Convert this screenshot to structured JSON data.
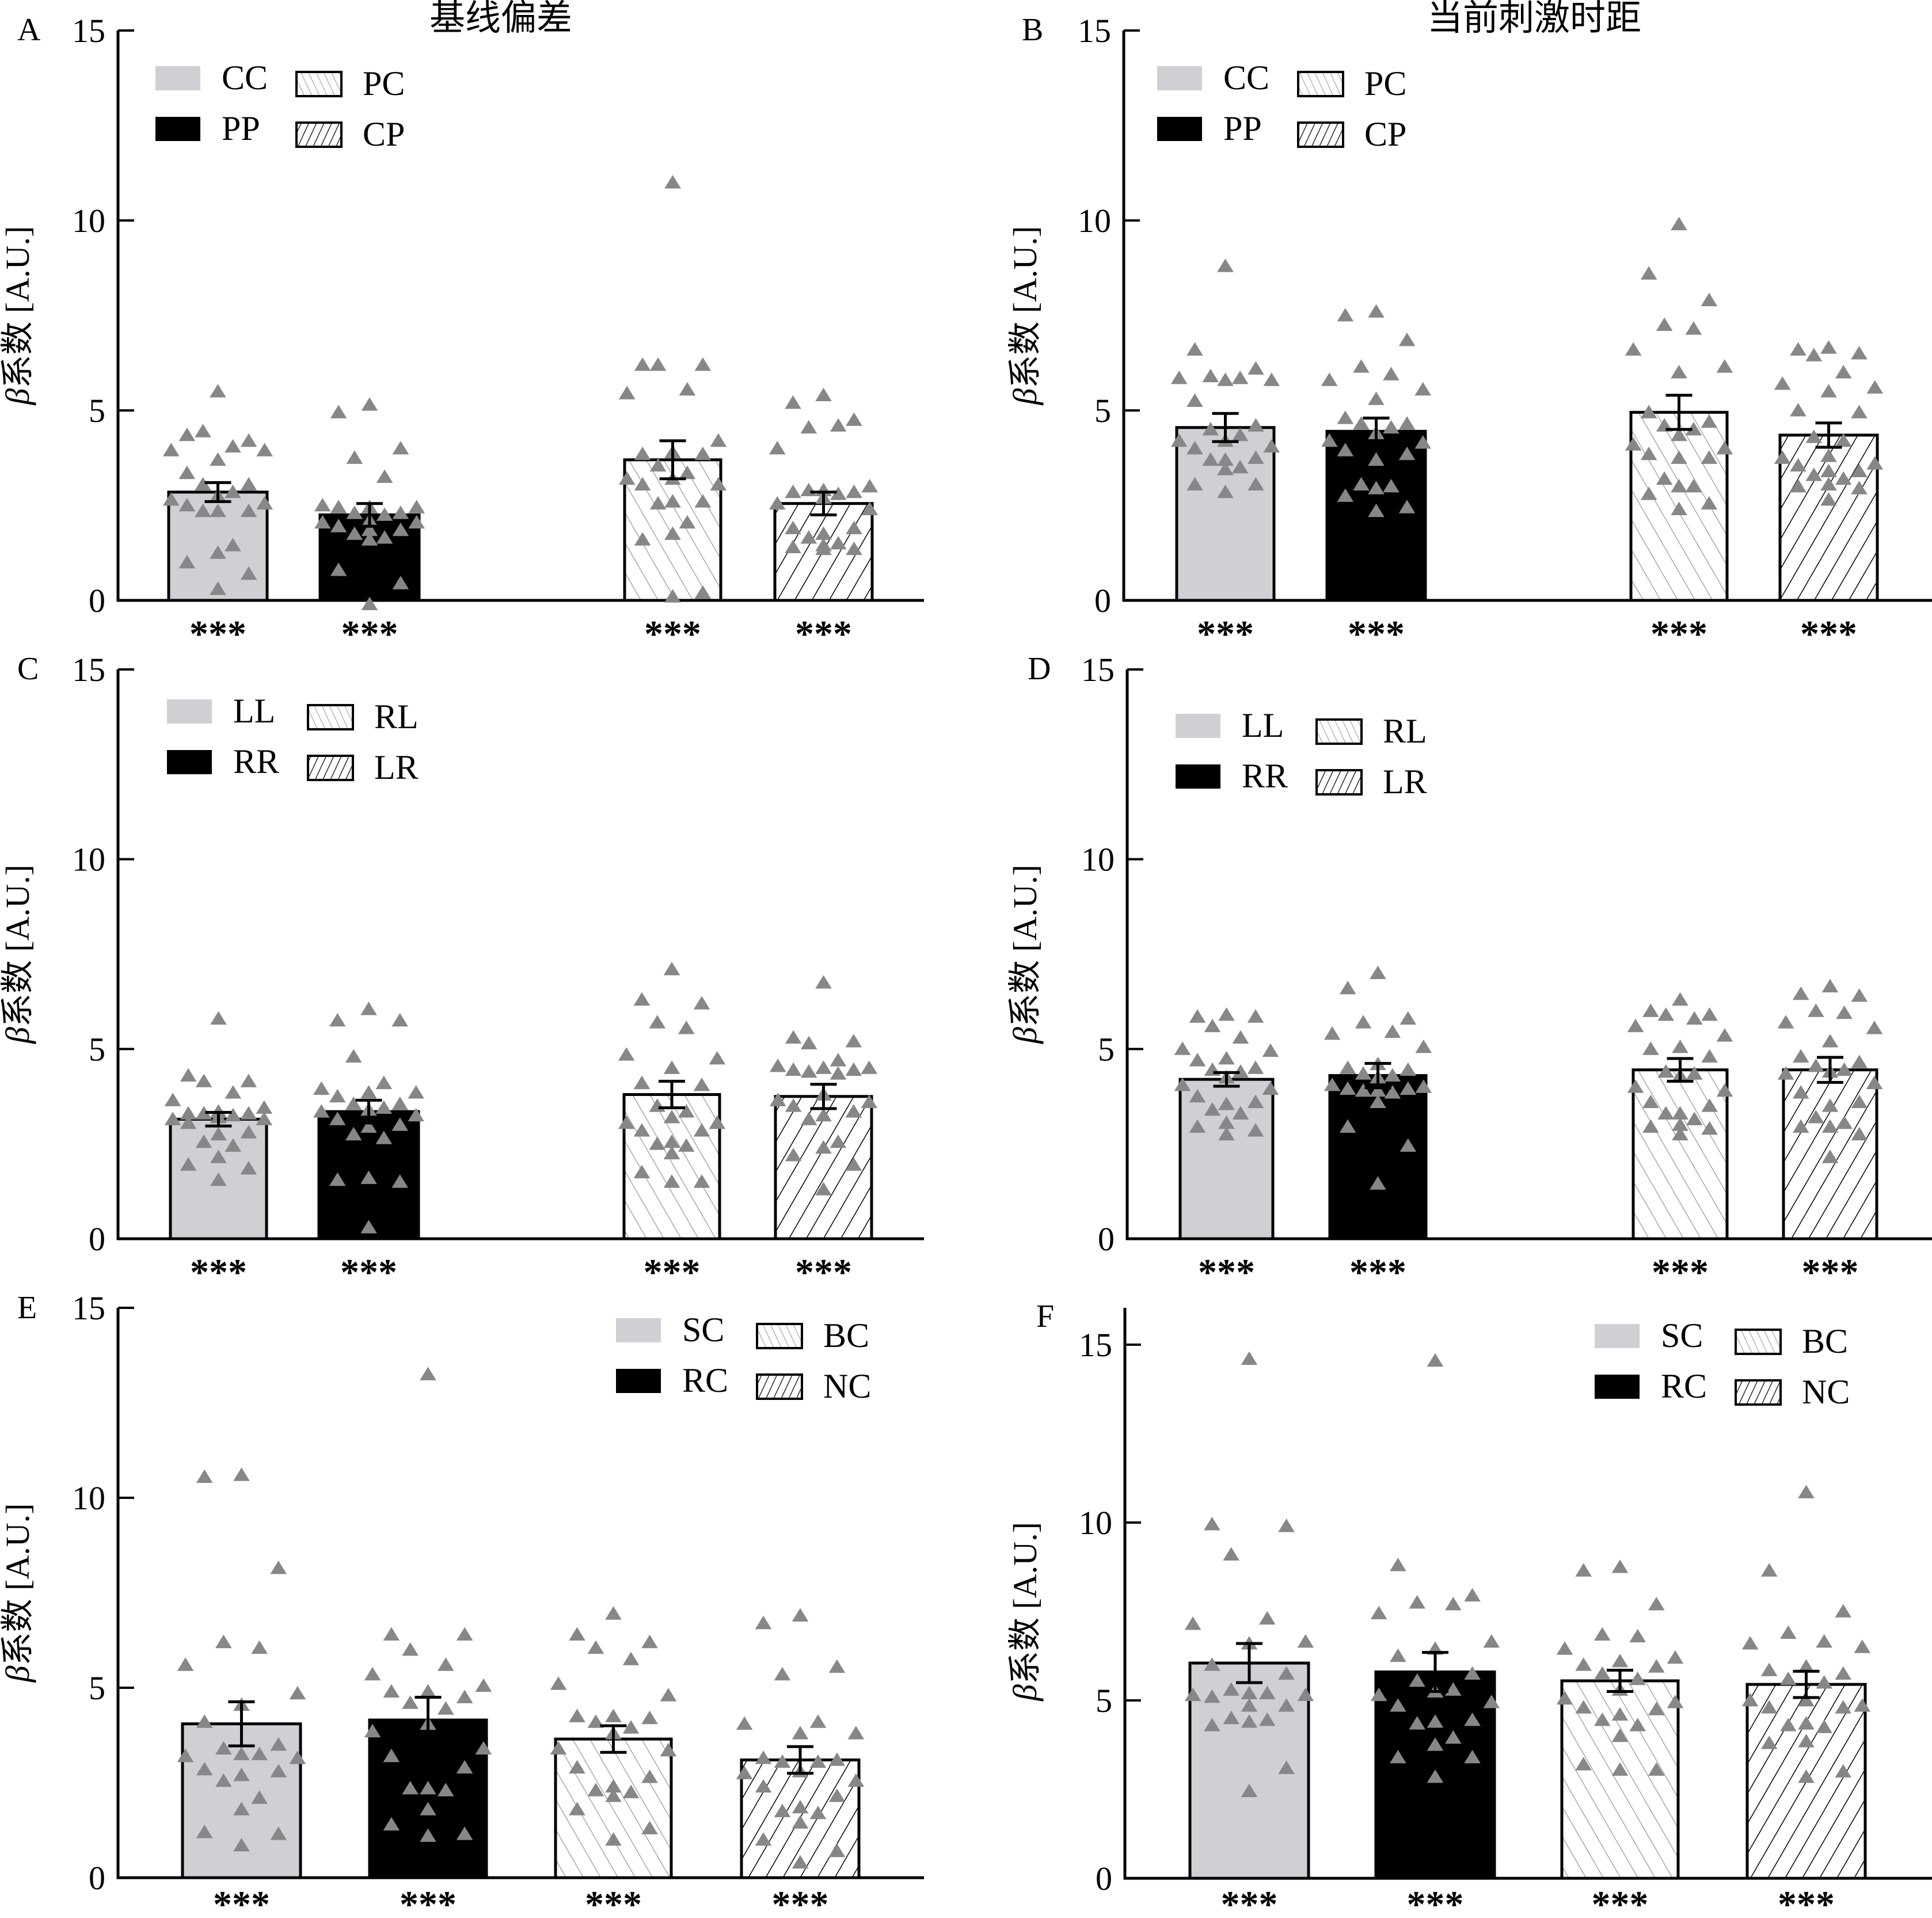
{
  "titles": {
    "left": "基线偏差",
    "right": "当前刺激时距"
  },
  "colors": {
    "solid_gray": "#cfcfd4",
    "solid_black": "#000000",
    "hatch_light": "#a8a8a8",
    "hatch_dark": "#000000",
    "points": "#87878a"
  },
  "chart_data": [
    {
      "type": "bar",
      "panel": "A",
      "title": "基线偏差",
      "ylabel_symbol": "β",
      "ylabel": "系数 [A.U.]",
      "ylim": [
        0,
        15
      ],
      "yticks": [
        "0",
        "5",
        "10",
        "15"
      ],
      "legend_placement": "top-left",
      "categories": [
        "CC",
        "PP",
        "PC",
        "CP"
      ],
      "legend": [
        [
          "CC",
          "PC"
        ],
        [
          "PP",
          "CP"
        ]
      ],
      "fills": [
        "solid_gray",
        "solid_black",
        "hatch_light",
        "hatch_dark"
      ],
      "values": [
        2.85,
        2.25,
        3.7,
        2.55
      ],
      "se": [
        0.25,
        0.3,
        0.5,
        0.3
      ],
      "significance": [
        "***",
        "***",
        "***",
        "***"
      ],
      "points": [
        [
          5.5,
          4.35,
          4.2,
          4.45,
          4.05,
          3.95,
          3.95,
          3.7,
          3.35,
          3.05,
          3.05,
          2.85,
          2.75,
          2.65,
          2.55,
          2.5,
          2.35,
          2.35,
          2.35,
          1.45,
          1.25,
          1.0,
          0.7,
          0.3
        ],
        [
          5.15,
          4.95,
          4.0,
          3.75,
          3.25,
          2.5,
          2.45,
          2.45,
          2.45,
          2.3,
          2.3,
          2.25,
          2.1,
          2.05,
          2.05,
          1.95,
          1.85,
          1.85,
          1.75,
          1.65,
          1.6,
          0.8,
          0.45,
          -0.1
        ],
        [
          11.0,
          6.2,
          6.2,
          6.2,
          5.55,
          5.45,
          4.2,
          3.9,
          3.85,
          3.85,
          3.55,
          3.35,
          3.2,
          3.2,
          3.05,
          3.05,
          2.6,
          2.6,
          2.55,
          2.05,
          1.75,
          1.6,
          0.2,
          0.1
        ],
        [
          5.4,
          5.2,
          4.75,
          4.55,
          4.6,
          4.0,
          3.0,
          2.9,
          2.85,
          2.85,
          2.9,
          2.8,
          2.7,
          2.55,
          2.4,
          1.9,
          1.9,
          1.75,
          1.65,
          1.5,
          1.45,
          1.4,
          1.35,
          1.35
        ]
      ]
    },
    {
      "type": "bar",
      "panel": "B",
      "title": "当前刺激时距",
      "ylabel_symbol": "β",
      "ylabel": "系数 [A.U.]",
      "ylim": [
        0,
        15
      ],
      "yticks": [
        "0",
        "5",
        "10",
        "15"
      ],
      "legend_placement": "top-left",
      "categories": [
        "CC",
        "PP",
        "PC",
        "CP"
      ],
      "legend": [
        [
          "CC",
          "PC"
        ],
        [
          "PP",
          "CP"
        ]
      ],
      "fills": [
        "solid_gray",
        "solid_black",
        "hatch_light",
        "hatch_dark"
      ],
      "values": [
        4.55,
        4.45,
        4.95,
        4.35
      ],
      "se": [
        0.37,
        0.35,
        0.45,
        0.32
      ],
      "significance": [
        "***",
        "***",
        "***",
        "***"
      ],
      "points": [
        [
          8.8,
          6.6,
          6.1,
          5.9,
          5.85,
          5.85,
          5.8,
          5.8,
          5.25,
          4.6,
          4.5,
          4.35,
          4.2,
          4.2,
          4.05,
          4.0,
          3.75,
          3.7,
          3.7,
          3.5,
          3.45,
          3.05,
          3.05,
          2.85
        ],
        [
          7.6,
          7.5,
          6.85,
          6.15,
          5.95,
          5.8,
          5.55,
          5.3,
          4.8,
          4.65,
          4.65,
          4.55,
          4.4,
          4.2,
          4.15,
          3.95,
          3.85,
          3.7,
          3.05,
          3.0,
          2.95,
          2.75,
          2.45,
          2.35
        ],
        [
          9.9,
          8.6,
          7.9,
          7.25,
          7.15,
          6.6,
          6.15,
          6.0,
          4.95,
          4.7,
          4.6,
          4.5,
          4.35,
          4.1,
          4.0,
          3.85,
          3.75,
          3.75,
          3.2,
          3.0,
          3.0,
          2.8,
          2.55,
          2.4
        ],
        [
          6.65,
          6.6,
          6.5,
          6.45,
          6.0,
          5.7,
          5.6,
          5.5,
          5.0,
          4.95,
          4.3,
          4.2,
          3.8,
          3.75,
          3.6,
          3.55,
          3.4,
          3.4,
          3.3,
          3.2,
          3.05,
          3.0,
          2.95,
          2.65
        ]
      ]
    },
    {
      "type": "bar",
      "panel": "C",
      "ylabel_symbol": "β",
      "ylabel": "系数 [A.U.]",
      "ylim": [
        0,
        15
      ],
      "yticks": [
        "0",
        "5",
        "10",
        "15"
      ],
      "legend_placement": "top-left",
      "categories": [
        "LL",
        "RR",
        "RL",
        "LR"
      ],
      "legend": [
        [
          "LL",
          "RL"
        ],
        [
          "RR",
          "LR"
        ]
      ],
      "fills": [
        "solid_gray",
        "solid_black",
        "hatch_light",
        "hatch_dark"
      ],
      "values": [
        3.15,
        3.35,
        3.8,
        3.75
      ],
      "se": [
        0.18,
        0.3,
        0.35,
        0.32
      ],
      "significance": [
        "***",
        "***",
        "***",
        "***"
      ],
      "points": [
        [
          5.8,
          4.3,
          4.15,
          4.15,
          3.85,
          3.65,
          3.45,
          3.35,
          3.3,
          3.3,
          3.3,
          3.25,
          3.2,
          3.15,
          3.15,
          3.05,
          2.8,
          2.75,
          2.55,
          2.45,
          2.15,
          1.95,
          1.85,
          1.55
        ],
        [
          6.05,
          5.75,
          5.75,
          4.8,
          4.1,
          3.95,
          3.85,
          3.85,
          3.75,
          3.55,
          3.55,
          3.45,
          3.4,
          3.35,
          3.25,
          3.15,
          3.0,
          2.95,
          2.75,
          2.65,
          1.6,
          1.55,
          1.5,
          0.3
        ],
        [
          7.1,
          6.3,
          6.2,
          5.7,
          5.55,
          4.85,
          4.75,
          4.5,
          4.1,
          4.05,
          3.5,
          3.35,
          3.2,
          3.05,
          3.05,
          2.85,
          2.85,
          2.55,
          2.5,
          2.45,
          2.25,
          1.75,
          1.5,
          1.5
        ],
        [
          6.75,
          5.3,
          5.2,
          5.15,
          4.7,
          4.55,
          4.5,
          4.5,
          4.45,
          4.45,
          4.4,
          4.35,
          3.8,
          3.65,
          3.6,
          3.5,
          3.35,
          3.25,
          3.15,
          2.55,
          2.4,
          2.2,
          1.95,
          1.3
        ]
      ]
    },
    {
      "type": "bar",
      "panel": "D",
      "ylabel_symbol": "β",
      "ylabel": "系数 [A.U.]",
      "ylim": [
        0,
        15
      ],
      "yticks": [
        "0",
        "5",
        "10",
        "15"
      ],
      "legend_placement": "top-left",
      "categories": [
        "LL",
        "RR",
        "RL",
        "LR"
      ],
      "legend": [
        [
          "LL",
          "RL"
        ],
        [
          "RR",
          "LR"
        ]
      ],
      "fills": [
        "solid_gray",
        "solid_black",
        "hatch_light",
        "hatch_dark"
      ],
      "values": [
        4.2,
        4.3,
        4.45,
        4.45
      ],
      "se": [
        0.18,
        0.32,
        0.3,
        0.33
      ],
      "significance": [
        "***",
        "***",
        "***",
        "***"
      ],
      "points": [
        [
          5.9,
          5.85,
          5.85,
          5.6,
          5.3,
          5.0,
          4.95,
          4.75,
          4.7,
          4.5,
          4.45,
          4.4,
          4.25,
          4.05,
          3.95,
          3.75,
          3.6,
          3.55,
          3.4,
          3.3,
          3.05,
          2.95,
          2.85,
          2.75
        ],
        [
          7.0,
          6.6,
          5.8,
          5.7,
          5.45,
          5.4,
          5.05,
          4.6,
          4.5,
          4.45,
          4.35,
          4.3,
          4.25,
          4.05,
          4.0,
          3.95,
          3.95,
          3.9,
          3.9,
          3.85,
          3.6,
          2.95,
          2.45,
          1.45
        ],
        [
          6.3,
          6.0,
          5.9,
          5.9,
          5.8,
          5.6,
          5.35,
          5.05,
          5.0,
          4.8,
          4.4,
          4.35,
          4.3,
          4.0,
          3.9,
          3.6,
          3.5,
          3.3,
          3.3,
          3.15,
          3.0,
          2.95,
          2.9,
          2.75
        ],
        [
          6.65,
          6.45,
          6.4,
          6.0,
          5.95,
          5.7,
          5.55,
          5.2,
          4.8,
          4.65,
          4.55,
          4.45,
          4.4,
          4.35,
          4.1,
          3.85,
          3.6,
          3.5,
          3.2,
          3.05,
          2.95,
          2.95,
          2.75,
          2.15
        ]
      ]
    },
    {
      "type": "bar",
      "panel": "E",
      "ylabel_symbol": "β",
      "ylabel": "系数 [A.U.]",
      "ylim": [
        0,
        15
      ],
      "yticks": [
        "0",
        "5",
        "10",
        "15"
      ],
      "legend_placement": "top-right",
      "categories": [
        "SC",
        "RC",
        "BC",
        "NC"
      ],
      "legend": [
        [
          "SC",
          "BC"
        ],
        [
          "RC",
          "NC"
        ]
      ],
      "fills": [
        "solid_gray",
        "solid_black",
        "hatch_light",
        "hatch_dark"
      ],
      "values": [
        4.05,
        4.15,
        3.65,
        3.1
      ],
      "se": [
        0.58,
        0.6,
        0.35,
        0.35
      ],
      "significance": [
        "***",
        "***",
        "***",
        "***"
      ],
      "points": [
        [
          10.6,
          10.55,
          8.15,
          6.2,
          6.05,
          5.6,
          4.85,
          4.55,
          4.1,
          3.5,
          3.4,
          3.25,
          3.25,
          3.2,
          3.15,
          2.85,
          2.8,
          2.7,
          2.55,
          2.1,
          1.8,
          1.2,
          1.15,
          0.85
        ],
        [
          13.25,
          6.4,
          6.4,
          6.0,
          5.6,
          5.35,
          5.05,
          4.9,
          4.9,
          4.75,
          4.6,
          4.45,
          4.05,
          3.85,
          3.4,
          3.2,
          2.9,
          2.35,
          2.35,
          2.3,
          1.8,
          1.4,
          1.15,
          1.1
        ],
        [
          6.95,
          6.4,
          6.2,
          6.05,
          5.75,
          5.1,
          4.8,
          4.25,
          4.25,
          4.2,
          4.1,
          3.95,
          3.8,
          3.4,
          3.35,
          2.9,
          2.65,
          2.4,
          2.3,
          2.25,
          2.15,
          1.8,
          1.3,
          1.0
        ],
        [
          6.9,
          6.7,
          5.55,
          5.35,
          4.1,
          4.05,
          3.8,
          3.8,
          3.15,
          3.1,
          3.05,
          3.05,
          2.8,
          2.75,
          2.55,
          2.4,
          2.15,
          1.85,
          1.75,
          1.7,
          1.45,
          1.0,
          0.7,
          0.4
        ]
      ]
    },
    {
      "type": "bar",
      "panel": "F",
      "ylabel_symbol": "β",
      "ylabel": "系数 [A.U.]",
      "ylim": [
        0,
        16
      ],
      "yticks": [
        "0",
        "5",
        "10",
        "15"
      ],
      "legend_placement": "top-right",
      "categories": [
        "SC",
        "RC",
        "BC",
        "NC"
      ],
      "legend": [
        [
          "SC",
          "BC"
        ],
        [
          "RC",
          "NC"
        ]
      ],
      "fills": [
        "solid_gray",
        "solid_black",
        "hatch_light",
        "hatch_dark"
      ],
      "values": [
        6.05,
        5.8,
        5.55,
        5.45
      ],
      "se": [
        0.55,
        0.55,
        0.3,
        0.37
      ],
      "significance": [
        "***",
        "***",
        "***",
        "***"
      ],
      "points": [
        [
          14.6,
          9.95,
          9.9,
          9.1,
          7.3,
          7.15,
          6.65,
          6.6,
          6.0,
          5.75,
          5.3,
          5.2,
          5.2,
          5.15,
          5.15,
          5.1,
          4.85,
          4.85,
          4.5,
          4.45,
          4.4,
          4.3,
          3.1,
          2.45
        ],
        [
          14.55,
          8.8,
          7.95,
          7.75,
          7.7,
          7.45,
          6.65,
          6.45,
          6.25,
          5.75,
          5.55,
          5.3,
          5.25,
          5.15,
          4.95,
          4.85,
          4.45,
          4.4,
          4.35,
          3.95,
          3.75,
          3.4,
          3.4,
          2.85
        ],
        [
          8.75,
          8.65,
          7.7,
          6.85,
          6.8,
          6.45,
          6.2,
          6.1,
          6.0,
          5.95,
          5.75,
          5.6,
          5.3,
          5.05,
          4.95,
          4.8,
          4.75,
          4.6,
          4.45,
          4.3,
          4.0,
          3.2,
          3.05,
          3.05
        ],
        [
          10.85,
          8.65,
          7.5,
          6.9,
          6.65,
          6.6,
          6.5,
          5.95,
          5.85,
          5.75,
          5.6,
          5.5,
          5.0,
          5.0,
          4.85,
          4.8,
          4.8,
          4.35,
          4.3,
          4.25,
          3.85,
          3.8,
          3.0,
          2.85
        ]
      ]
    }
  ]
}
